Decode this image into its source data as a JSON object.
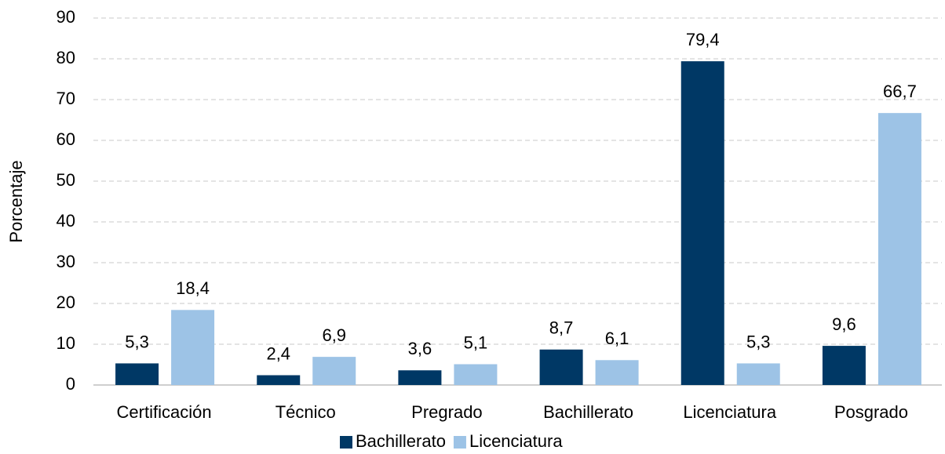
{
  "chart_data": {
    "type": "bar",
    "y_label": "Porcentaje",
    "categories": [
      "Certificación",
      "Técnico",
      "Pregrado",
      "Bachillerato",
      "Licenciatura",
      "Posgrado"
    ],
    "series": [
      {
        "name": "Bachillerato",
        "color": "#003865",
        "values": [
          5.3,
          2.4,
          3.6,
          8.7,
          79.4,
          9.6
        ],
        "value_labels": [
          "5,3",
          "2,4",
          "3,6",
          "8,7",
          "79,4",
          "9,6"
        ]
      },
      {
        "name": "Licenciatura",
        "color": "#9dc3e6",
        "values": [
          18.4,
          6.9,
          5.1,
          6.1,
          5.3,
          66.7
        ],
        "value_labels": [
          "18,4",
          "6,9",
          "5,1",
          "6,1",
          "5,3",
          "66,7"
        ]
      }
    ],
    "ylim": [
      0,
      90
    ],
    "yticks": [
      0,
      10,
      20,
      30,
      40,
      50,
      60,
      70,
      80,
      90
    ],
    "grid": true,
    "legend": "bottom"
  }
}
